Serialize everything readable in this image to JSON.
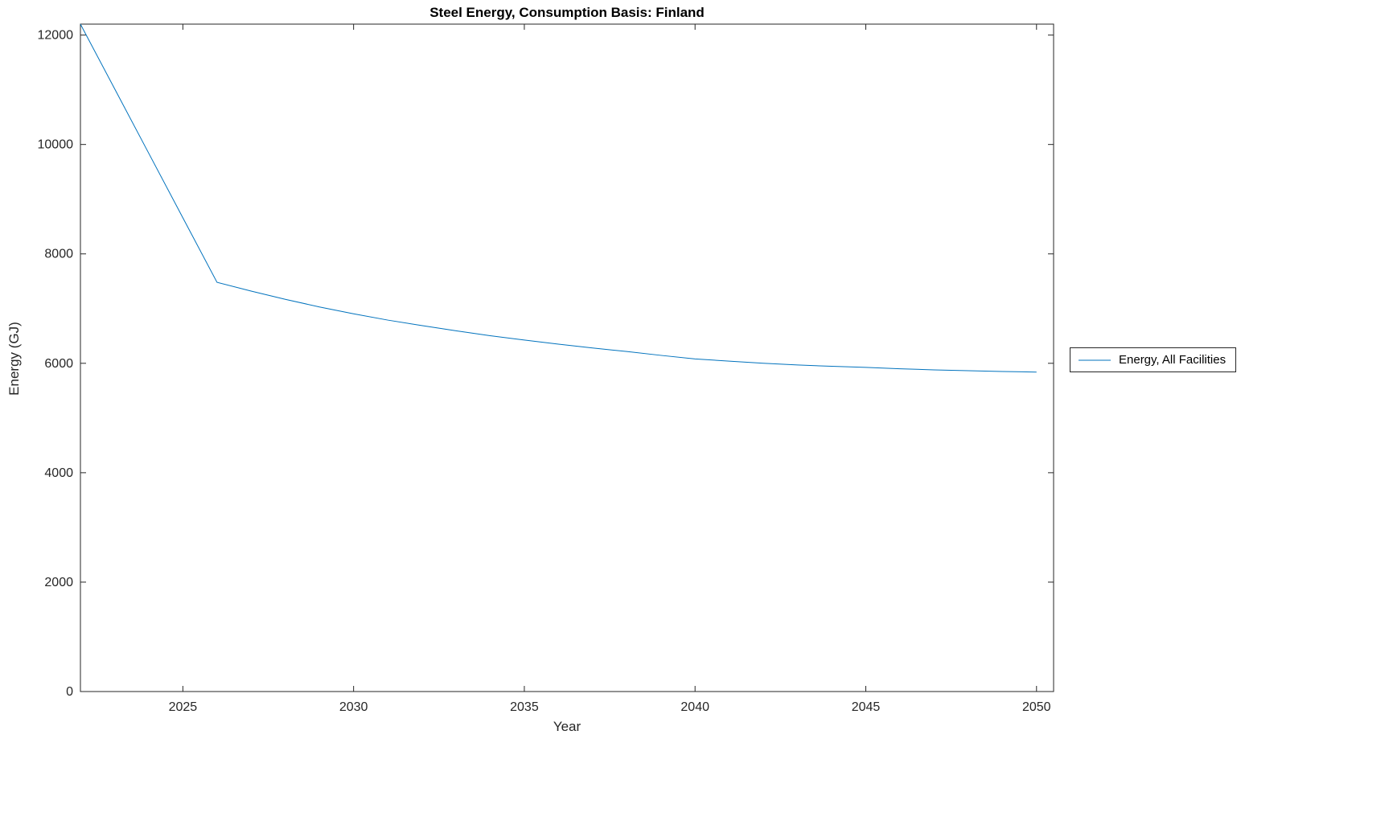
{
  "chart_data": {
    "type": "line",
    "title": "Steel Energy, Consumption Basis: Finland",
    "xlabel": "Year",
    "ylabel": "Energy (GJ)",
    "xlim": [
      2022,
      2050.5
    ],
    "ylim": [
      0,
      12200
    ],
    "xticks": [
      2025,
      2030,
      2035,
      2040,
      2045,
      2050
    ],
    "yticks": [
      0,
      2000,
      4000,
      6000,
      8000,
      10000,
      12000
    ],
    "grid": false,
    "legend_position": "right-outside",
    "axis_color": "#262626",
    "series": [
      {
        "name": "Energy, All Facilities",
        "color": "#0072BD",
        "x": [
          2022,
          2023,
          2024,
          2025,
          2026,
          2027,
          2028,
          2029,
          2030,
          2031,
          2032,
          2033,
          2034,
          2035,
          2036,
          2037,
          2038,
          2039,
          2040,
          2041,
          2042,
          2043,
          2044,
          2045,
          2046,
          2047,
          2048,
          2049,
          2050
        ],
        "y": [
          12200,
          11020,
          9840,
          8660,
          7480,
          7320,
          7170,
          7030,
          6905,
          6790,
          6690,
          6595,
          6505,
          6425,
          6350,
          6280,
          6215,
          6145,
          6080,
          6040,
          6000,
          5970,
          5945,
          5925,
          5900,
          5880,
          5865,
          5850,
          5840
        ]
      }
    ]
  }
}
